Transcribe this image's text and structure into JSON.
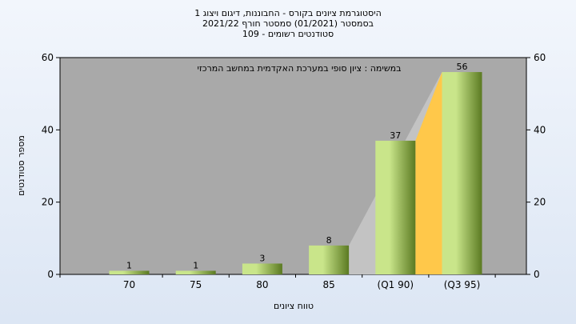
{
  "chart_data": {
    "type": "bar",
    "title_lines": [
      "היסטוגרמת ציונים בקורס - החבוננות, דיגום ויצוג 1",
      "בסמסטר  (01/2021)  סמסטר חורף  2021/22",
      "סטודנטים רשומים - 109"
    ],
    "annotation": "במשימה : ציון סופי במערכת האקדמית במחשב המרכזי",
    "xlabel": "טווח ציונים",
    "ylabel": "מספר סטודנטים",
    "ylim": [
      0,
      60
    ],
    "yticks": [
      0,
      20,
      40,
      60
    ],
    "categories": [
      "70",
      "75",
      "80",
      "85",
      "(Q1 90)",
      "(Q3 95)"
    ],
    "values": [
      1,
      1,
      3,
      8,
      37,
      56
    ],
    "grid": false,
    "legend": "none",
    "colors": {
      "plot_background": "#a9a9a9",
      "bar_light": "#c9e58a",
      "bar_dark": "#5b7a22",
      "quartile_fill": "#ffc84a",
      "shadow_fill": "#c3c3c3"
    }
  }
}
